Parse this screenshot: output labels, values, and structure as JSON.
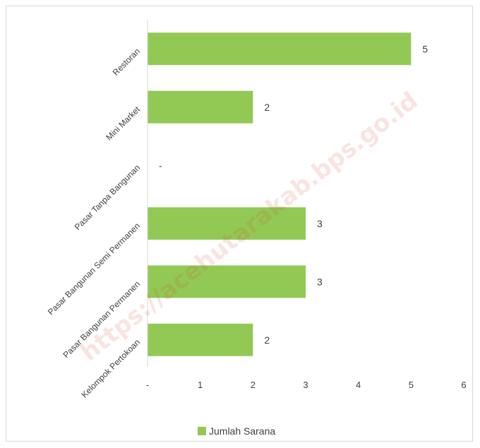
{
  "chart_data": {
    "type": "bar",
    "orientation": "horizontal",
    "categories": [
      "Restoran",
      "Mini Market",
      "Pasar Tanpa Bangunan",
      "Pasar Bangunan Semi Permanen",
      "Pasar Bangunan Permanen",
      "Kelompok Pertokoan"
    ],
    "series": [
      {
        "name": "Jumlah Sarana",
        "values": [
          5,
          2,
          0,
          3,
          3,
          2
        ],
        "value_labels": [
          "5",
          "2",
          "-",
          "3",
          "3",
          "2"
        ]
      }
    ],
    "xlim": [
      0,
      6
    ],
    "x_ticks": [
      "-",
      "1",
      "2",
      "3",
      "4",
      "5",
      "6"
    ],
    "grid": false,
    "legend": {
      "position": "bottom",
      "label": "Jumlah Sarana"
    },
    "colors": {
      "bar": "#92c955",
      "axis": "#d9d9d9",
      "text": "#404040"
    }
  },
  "watermark": "https://acehutarakab.bps.go.id"
}
